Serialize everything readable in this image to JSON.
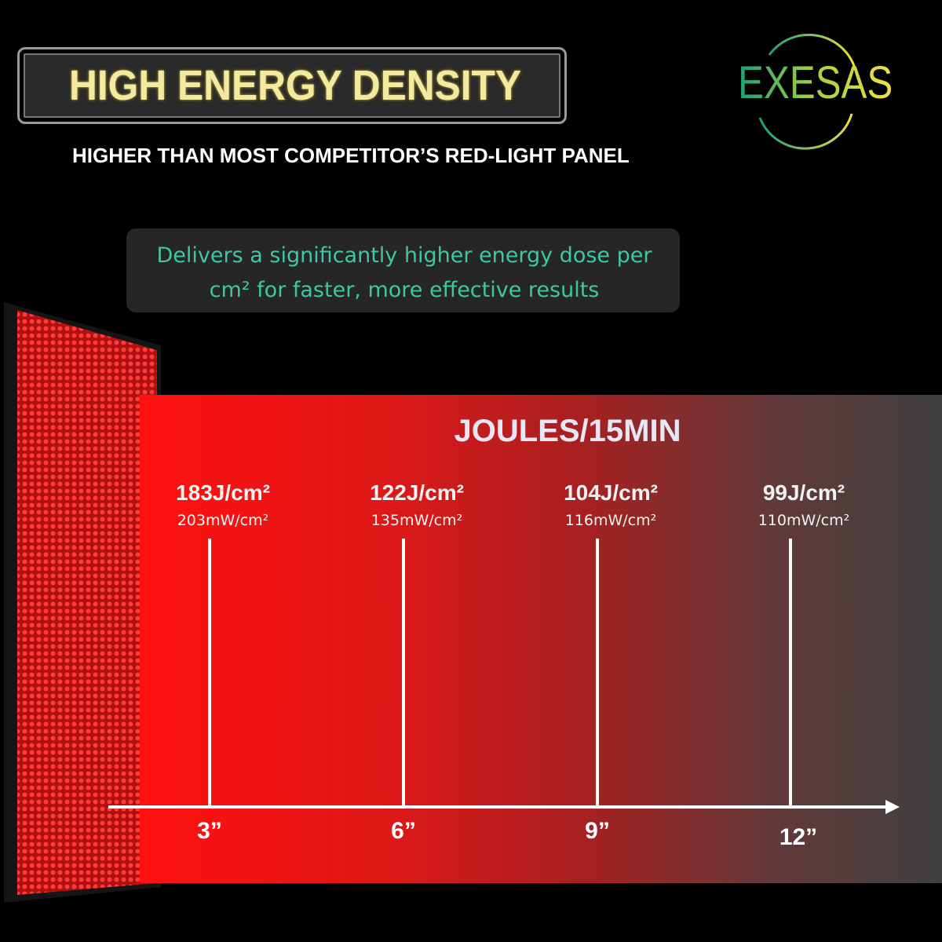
{
  "header": {
    "title": "HIGH ENERGY DENSITY",
    "subtitle": "HIGHER THAN MOST COMPETITOR’S RED-LIGHT PANEL"
  },
  "brand": "EXESAS",
  "callout": "Delivers a significantly higher energy dose per cm² for faster, more effective results",
  "chart": {
    "title": "JOULES/15MIN",
    "points": [
      {
        "energy": "183J/cm²",
        "power": "203mW/cm²",
        "distance": "3”"
      },
      {
        "energy": "122J/cm²",
        "power": "135mW/cm²",
        "distance": "6”"
      },
      {
        "energy": "104J/cm²",
        "power": "116mW/cm²",
        "distance": "9”"
      },
      {
        "energy": "99J/cm²",
        "power": "110mW/cm²",
        "distance": "12”"
      }
    ]
  }
}
